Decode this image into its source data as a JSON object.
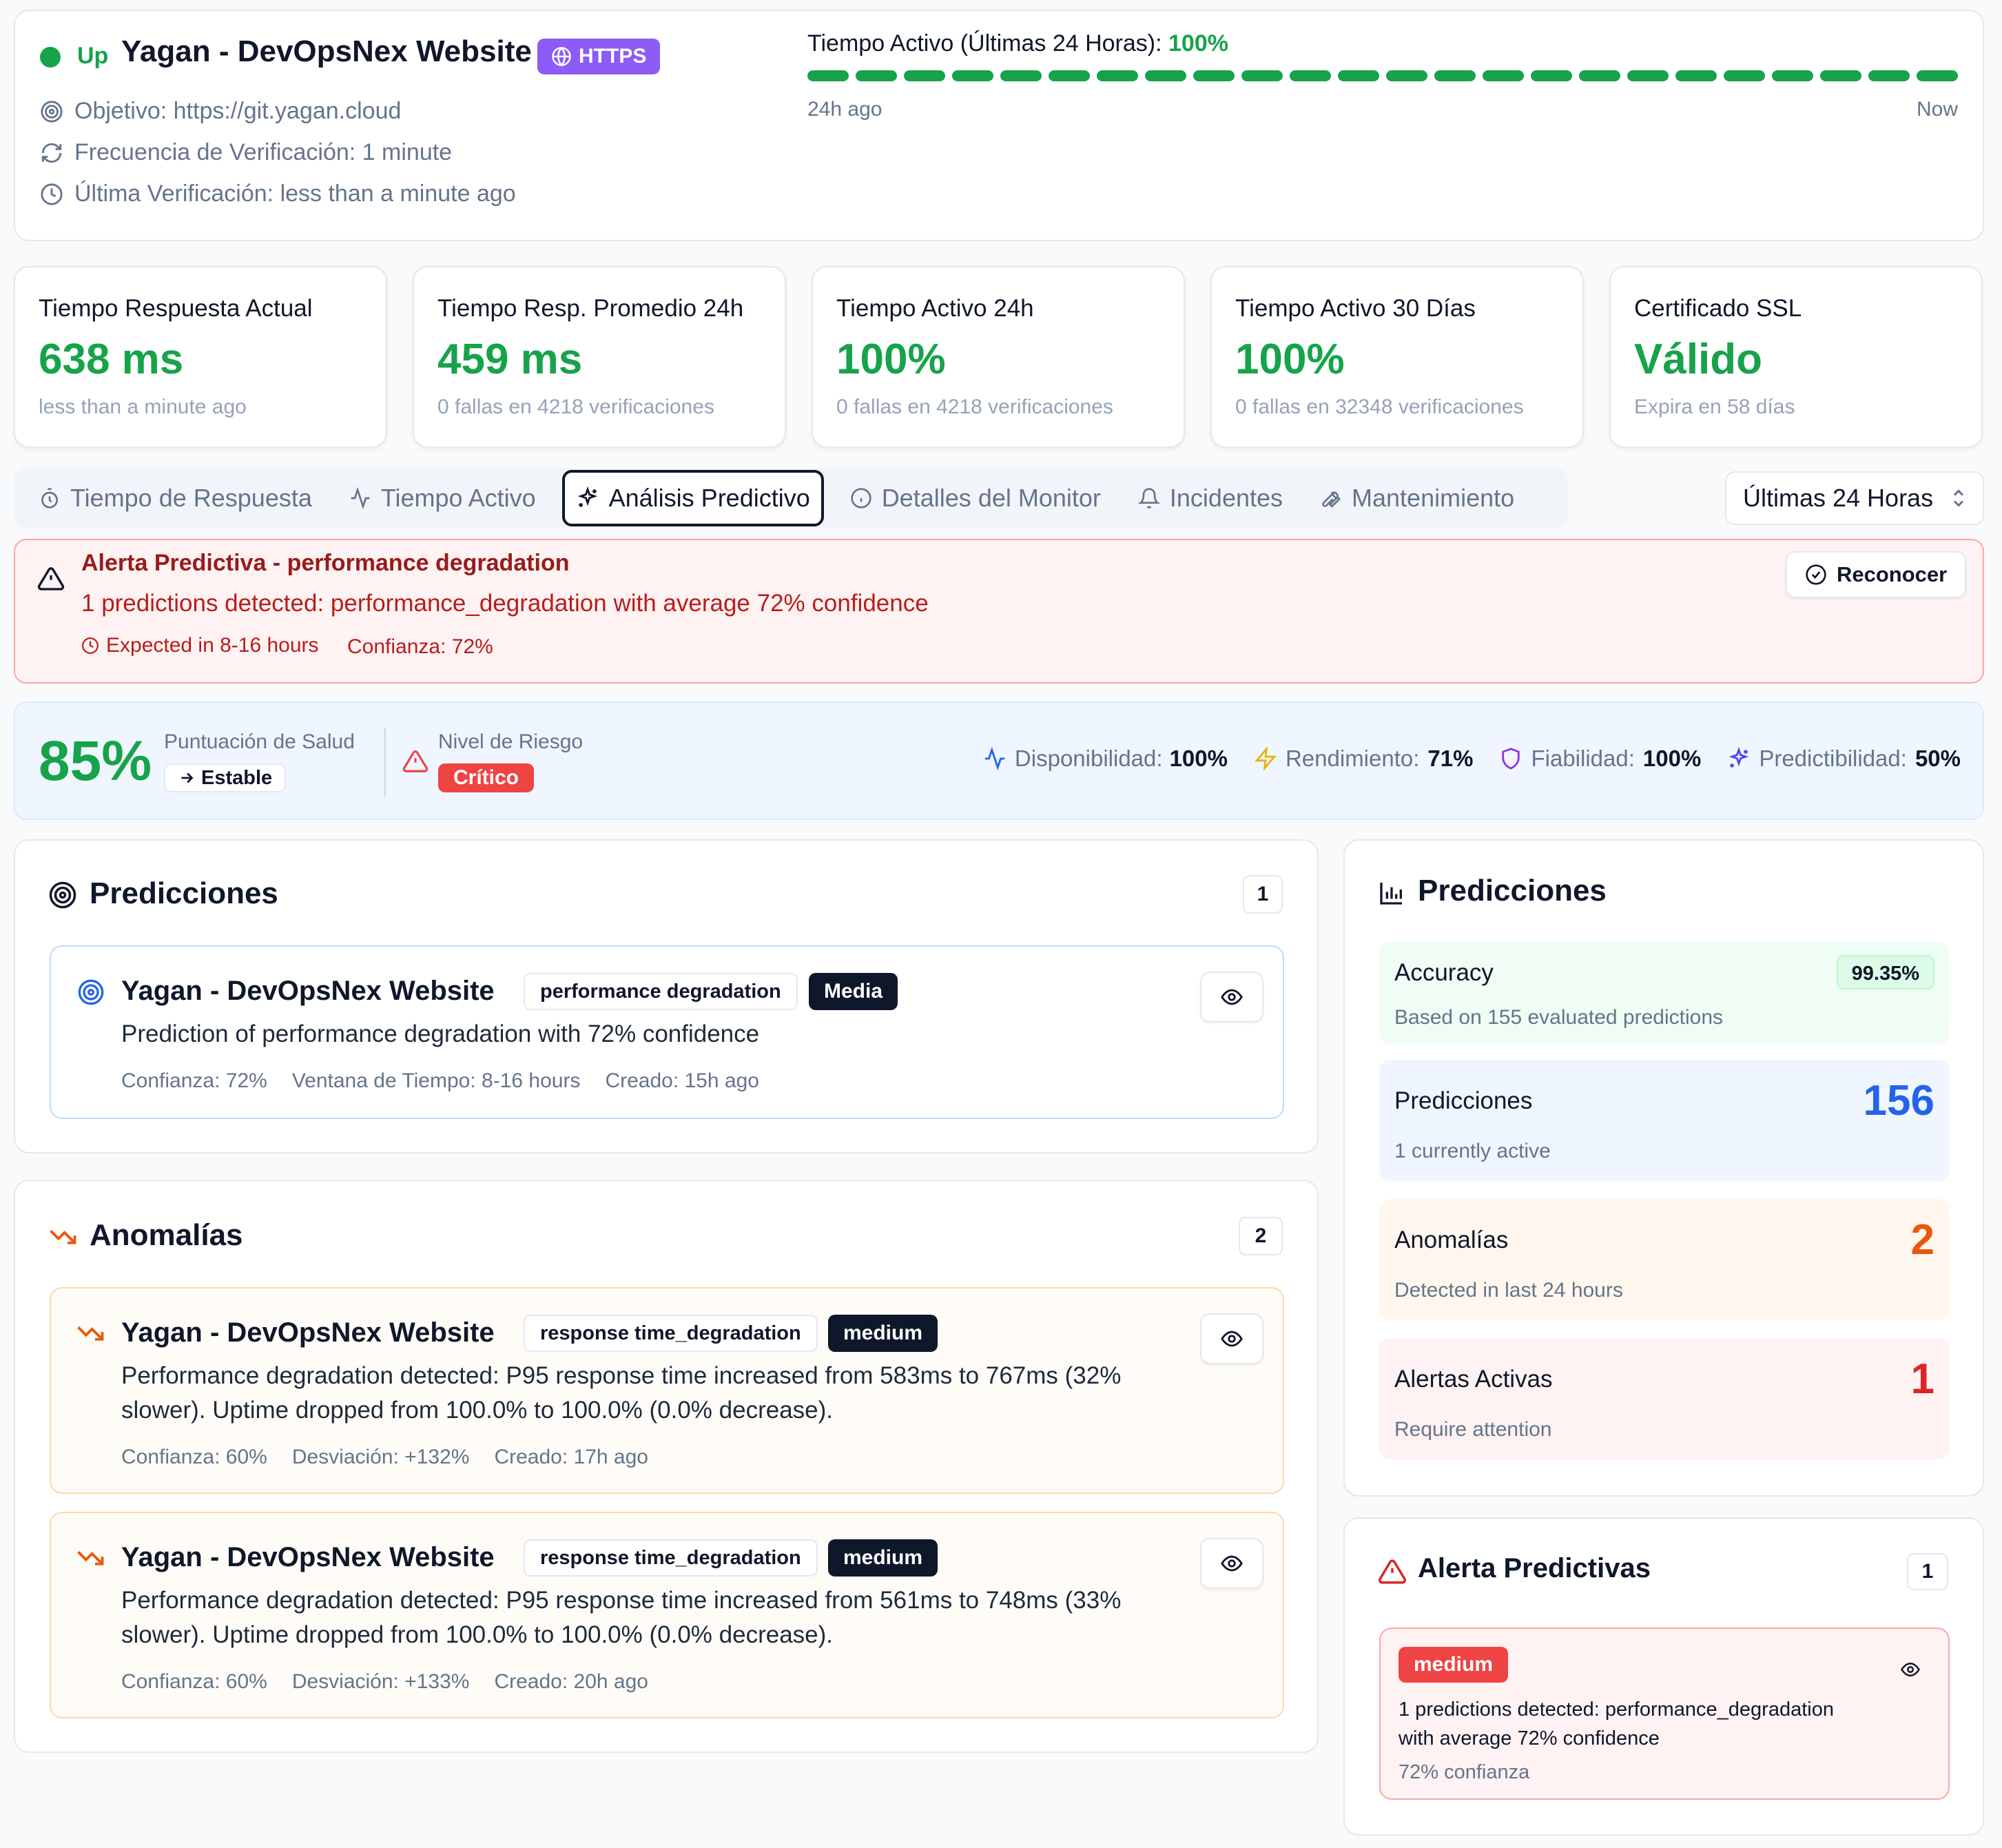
{
  "header": {
    "status": "Up",
    "title": "Yagan - DevOpsNex Website",
    "protocol_badge": "HTTPS",
    "target_label": "Objetivo:",
    "target_value": "https://git.yagan.cloud",
    "frequency_label": "Frecuencia de Verificación:",
    "frequency_value": "1 minute",
    "last_check_label": "Última Verificación:",
    "last_check_value": "less than a minute ago",
    "uptime_label": "Tiempo Activo (Últimas 24 Horas):",
    "uptime_value": "100%",
    "uptime_segments_up": 24,
    "uptime_start": "24h ago",
    "uptime_end": "Now"
  },
  "stats": [
    {
      "title": "Tiempo Respuesta Actual",
      "value": "638 ms",
      "sub": "less than a minute ago"
    },
    {
      "title": "Tiempo Resp. Promedio 24h",
      "value": "459 ms",
      "sub": "0 fallas en 4218 verificaciones"
    },
    {
      "title": "Tiempo Activo 24h",
      "value": "100%",
      "sub": "0 fallas en 4218 verificaciones"
    },
    {
      "title": "Tiempo Activo 30 Días",
      "value": "100%",
      "sub": "0 fallas en 32348 verificaciones"
    },
    {
      "title": "Certificado SSL",
      "value": "Válido",
      "sub": "Expira en 58 días"
    }
  ],
  "tabs": [
    {
      "label": "Tiempo de Respuesta",
      "icon": "timer-icon"
    },
    {
      "label": "Tiempo Activo",
      "icon": "activity-icon"
    },
    {
      "label": "Análisis Predictivo",
      "icon": "sparkles-icon",
      "active": true
    },
    {
      "label": "Detalles del Monitor",
      "icon": "info-icon"
    },
    {
      "label": "Incidentes",
      "icon": "bell-icon"
    },
    {
      "label": "Mantenimiento",
      "icon": "wrench-icon"
    }
  ],
  "range_select": {
    "value": "Últimas 24 Horas"
  },
  "alert": {
    "title": "Alerta Predictiva - performance degradation",
    "message": "1 predictions detected: performance_degradation with average 72% confidence",
    "expected": "Expected in 8-16 hours",
    "confidence": "Confianza: 72%",
    "ack_label": "Reconocer"
  },
  "health": {
    "score": "85%",
    "score_label": "Puntuación de Salud",
    "trend": "Estable",
    "risk_label": "Nivel de Riesgo",
    "risk_value": "Crítico",
    "metrics": [
      {
        "label": "Disponibilidad:",
        "value": "100%",
        "icon": "activity-icon",
        "color": "#2563eb"
      },
      {
        "label": "Rendimiento:",
        "value": "71%",
        "icon": "zap-icon",
        "color": "#eab308"
      },
      {
        "label": "Fiabilidad:",
        "value": "100%",
        "icon": "shield-icon",
        "color": "#9333ea"
      },
      {
        "label": "Predictibilidad:",
        "value": "50%",
        "icon": "sparkles-icon",
        "color": "#4f46e5"
      }
    ]
  },
  "predictions": {
    "title": "Predicciones",
    "count": "1",
    "items": [
      {
        "title": "Yagan - DevOpsNex Website",
        "type": "performance degradation",
        "severity": "Media",
        "description": "Prediction of performance degradation with 72% confidence",
        "confidence": "Confianza: 72%",
        "window": "Ventana de Tiempo: 8-16 hours",
        "created": "Creado: 15h ago"
      }
    ]
  },
  "anomalies": {
    "title": "Anomalías",
    "count": "2",
    "items": [
      {
        "title": "Yagan - DevOpsNex Website",
        "type": "response time_degradation",
        "severity": "medium",
        "description_1": "Performance degradation detected: P95 response time increased from 583ms to 767ms (32%",
        "description_2": "slower). Uptime dropped from 100.0% to 100.0% (0.0% decrease).",
        "confidence": "Confianza: 60%",
        "deviation": "Desviación: +132%",
        "created": "Creado: 17h ago"
      },
      {
        "title": "Yagan - DevOpsNex Website",
        "type": "response time_degradation",
        "severity": "medium",
        "description_1": "Performance degradation detected: P95 response time increased from 561ms to 748ms (33%",
        "description_2": "slower). Uptime dropped from 100.0% to 100.0% (0.0% decrease).",
        "confidence": "Confianza: 60%",
        "deviation": "Desviación: +133%",
        "created": "Creado: 20h ago"
      }
    ]
  },
  "summary": {
    "title": "Predicciones",
    "accuracy_label": "Accuracy",
    "accuracy_value": "99.35%",
    "accuracy_sub": "Based on 155 evaluated predictions",
    "predictions_label": "Predicciones",
    "predictions_value": "156",
    "predictions_sub": "1 currently active",
    "anomalies_label": "Anomalías",
    "anomalies_value": "2",
    "anomalies_sub": "Detected in last 24 hours",
    "alerts_label": "Alertas Activas",
    "alerts_value": "1",
    "alerts_sub": "Require attention"
  },
  "predictive_alerts": {
    "title": "Alerta Predictivas",
    "count": "1",
    "item": {
      "severity": "medium",
      "message_1": "1 predictions detected: performance_degradation",
      "message_2": "with average 72% confidence",
      "confidence": "72% confianza"
    }
  }
}
